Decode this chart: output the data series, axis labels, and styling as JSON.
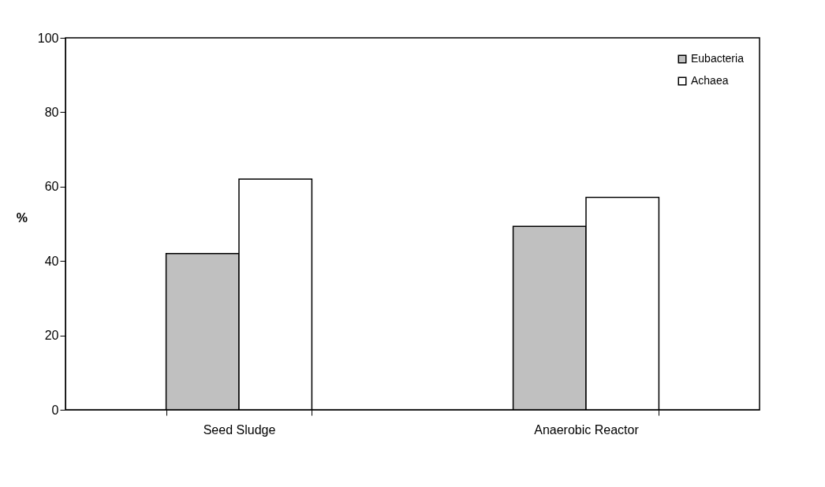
{
  "chart_data": {
    "type": "bar",
    "ylabel": "%",
    "categories": [
      "Seed Sludge",
      "Anaerobic Reactor"
    ],
    "series": [
      {
        "name": "Eubacteria",
        "color": "#c0c0c0",
        "values": [
          42,
          49.3
        ]
      },
      {
        "name": "Achaea",
        "color": "#ffffff",
        "values": [
          62,
          57.1
        ]
      }
    ],
    "ylim": [
      0,
      100
    ],
    "yticks": [
      0,
      20,
      40,
      60,
      80,
      100
    ],
    "grid": false,
    "legend": "top right"
  }
}
